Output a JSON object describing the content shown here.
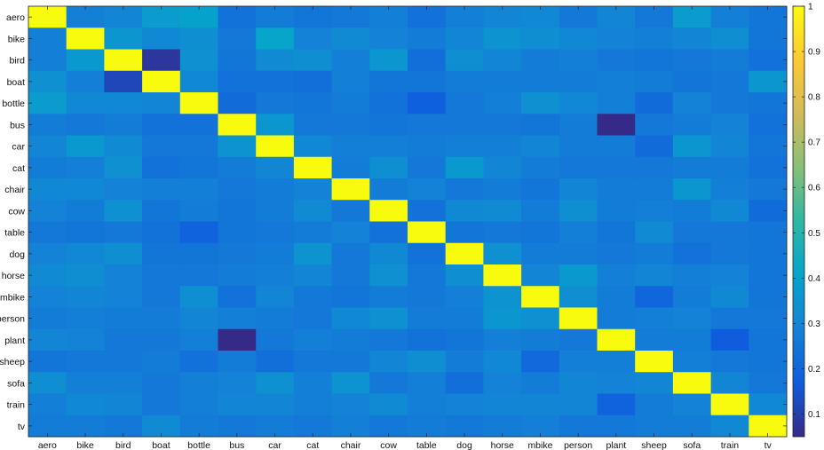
{
  "chart_data": {
    "type": "heatmap",
    "categories": [
      "aero",
      "bike",
      "bird",
      "boat",
      "bottle",
      "bus",
      "car",
      "cat",
      "chair",
      "cow",
      "table",
      "dog",
      "horse",
      "mbike",
      "person",
      "plant",
      "sheep",
      "sofa",
      "train",
      "tv"
    ],
    "zlim": [
      0.05,
      1
    ],
    "colorbar_ticks": [
      "0.1",
      "0.2",
      "0.3",
      "0.4",
      "0.5",
      "0.6",
      "0.7",
      "0.8",
      "0.9",
      "1"
    ],
    "colorbar_tick_values": [
      0.1,
      0.2,
      0.3,
      0.4,
      0.5,
      0.6,
      0.7,
      0.8,
      0.9,
      1
    ],
    "colormap": [
      "#352a87",
      "#0f5cdd",
      "#1481d6",
      "#06a4ca",
      "#2eb7a4",
      "#87bf77",
      "#d1bb59",
      "#fec832",
      "#f9fb0e"
    ],
    "values": [
      [
        1.0,
        0.28,
        0.3,
        0.38,
        0.4,
        0.24,
        0.27,
        0.25,
        0.26,
        0.28,
        0.24,
        0.28,
        0.3,
        0.31,
        0.26,
        0.3,
        0.26,
        0.38,
        0.28,
        0.25
      ],
      [
        0.28,
        1.0,
        0.36,
        0.31,
        0.33,
        0.26,
        0.41,
        0.29,
        0.32,
        0.29,
        0.27,
        0.3,
        0.35,
        0.33,
        0.31,
        0.29,
        0.28,
        0.3,
        0.33,
        0.25
      ],
      [
        0.28,
        0.37,
        1.0,
        0.08,
        0.34,
        0.25,
        0.32,
        0.33,
        0.28,
        0.36,
        0.23,
        0.33,
        0.3,
        0.27,
        0.28,
        0.26,
        0.25,
        0.26,
        0.27,
        0.24
      ],
      [
        0.34,
        0.28,
        0.12,
        1.0,
        0.31,
        0.24,
        0.24,
        0.23,
        0.28,
        0.25,
        0.25,
        0.27,
        0.27,
        0.27,
        0.27,
        0.28,
        0.27,
        0.25,
        0.26,
        0.36
      ],
      [
        0.38,
        0.31,
        0.31,
        0.3,
        1.0,
        0.22,
        0.26,
        0.25,
        0.27,
        0.24,
        0.18,
        0.26,
        0.28,
        0.34,
        0.31,
        0.28,
        0.22,
        0.29,
        0.26,
        0.25
      ],
      [
        0.27,
        0.26,
        0.27,
        0.24,
        0.24,
        1.0,
        0.36,
        0.26,
        0.26,
        0.25,
        0.26,
        0.26,
        0.26,
        0.25,
        0.27,
        0.03,
        0.26,
        0.27,
        0.29,
        0.24
      ],
      [
        0.3,
        0.37,
        0.32,
        0.26,
        0.26,
        0.35,
        1.0,
        0.31,
        0.28,
        0.28,
        0.27,
        0.28,
        0.28,
        0.3,
        0.27,
        0.27,
        0.22,
        0.36,
        0.3,
        0.25
      ],
      [
        0.27,
        0.28,
        0.34,
        0.24,
        0.25,
        0.27,
        0.3,
        1.0,
        0.27,
        0.33,
        0.26,
        0.37,
        0.3,
        0.27,
        0.26,
        0.26,
        0.26,
        0.27,
        0.27,
        0.24
      ],
      [
        0.31,
        0.31,
        0.29,
        0.28,
        0.28,
        0.26,
        0.27,
        0.29,
        1.0,
        0.27,
        0.29,
        0.26,
        0.27,
        0.25,
        0.3,
        0.27,
        0.27,
        0.36,
        0.28,
        0.26
      ],
      [
        0.29,
        0.27,
        0.34,
        0.25,
        0.27,
        0.25,
        0.27,
        0.32,
        0.26,
        1.0,
        0.24,
        0.31,
        0.32,
        0.27,
        0.33,
        0.27,
        0.28,
        0.27,
        0.31,
        0.22
      ],
      [
        0.26,
        0.25,
        0.26,
        0.24,
        0.19,
        0.25,
        0.26,
        0.27,
        0.29,
        0.24,
        1.0,
        0.25,
        0.26,
        0.25,
        0.28,
        0.25,
        0.32,
        0.26,
        0.26,
        0.25
      ],
      [
        0.29,
        0.31,
        0.33,
        0.25,
        0.25,
        0.26,
        0.27,
        0.35,
        0.26,
        0.31,
        0.24,
        1.0,
        0.34,
        0.27,
        0.27,
        0.26,
        0.27,
        0.24,
        0.26,
        0.25
      ],
      [
        0.32,
        0.33,
        0.29,
        0.26,
        0.26,
        0.27,
        0.28,
        0.3,
        0.26,
        0.34,
        0.26,
        0.33,
        1.0,
        0.3,
        0.37,
        0.28,
        0.3,
        0.28,
        0.29,
        0.25
      ],
      [
        0.29,
        0.3,
        0.29,
        0.26,
        0.33,
        0.24,
        0.3,
        0.26,
        0.25,
        0.27,
        0.26,
        0.28,
        0.35,
        1.0,
        0.33,
        0.27,
        0.2,
        0.27,
        0.31,
        0.25
      ],
      [
        0.27,
        0.28,
        0.27,
        0.27,
        0.3,
        0.28,
        0.27,
        0.26,
        0.31,
        0.34,
        0.27,
        0.27,
        0.36,
        0.34,
        1.0,
        0.27,
        0.28,
        0.29,
        0.26,
        0.26
      ],
      [
        0.3,
        0.29,
        0.26,
        0.26,
        0.28,
        0.04,
        0.26,
        0.28,
        0.27,
        0.26,
        0.24,
        0.25,
        0.28,
        0.27,
        0.26,
        1.0,
        0.27,
        0.27,
        0.17,
        0.25
      ],
      [
        0.25,
        0.26,
        0.26,
        0.27,
        0.24,
        0.27,
        0.23,
        0.26,
        0.26,
        0.3,
        0.33,
        0.27,
        0.31,
        0.21,
        0.28,
        0.28,
        1.0,
        0.28,
        0.26,
        0.25
      ],
      [
        0.33,
        0.28,
        0.28,
        0.26,
        0.28,
        0.29,
        0.34,
        0.28,
        0.35,
        0.26,
        0.28,
        0.23,
        0.29,
        0.27,
        0.3,
        0.29,
        0.3,
        1.0,
        0.3,
        0.26
      ],
      [
        0.28,
        0.31,
        0.3,
        0.26,
        0.28,
        0.3,
        0.3,
        0.28,
        0.29,
        0.32,
        0.28,
        0.29,
        0.3,
        0.3,
        0.3,
        0.19,
        0.27,
        0.29,
        1.0,
        0.31
      ],
      [
        0.27,
        0.27,
        0.26,
        0.32,
        0.27,
        0.26,
        0.27,
        0.26,
        0.28,
        0.26,
        0.27,
        0.26,
        0.27,
        0.28,
        0.26,
        0.26,
        0.27,
        0.27,
        0.31,
        1.0
      ]
    ]
  }
}
